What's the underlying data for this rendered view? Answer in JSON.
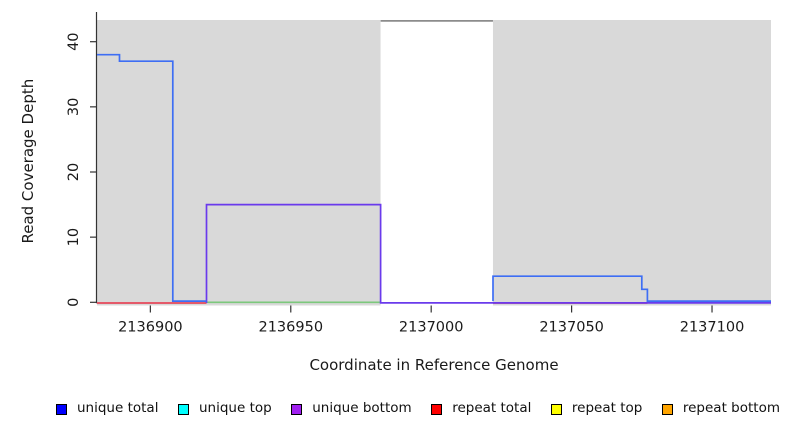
{
  "chart_data": {
    "type": "line",
    "subtype": "step-coverage-plot",
    "title": "",
    "xlabel": "Coordinate in Reference Genome",
    "ylabel": "Read Coverage Depth",
    "xlim": [
      2136881,
      2137121
    ],
    "ylim": [
      0,
      43.3
    ],
    "x_ticks": [
      2136900,
      2136950,
      2137000,
      2137050,
      2137100
    ],
    "y_ticks": [
      0,
      10,
      20,
      30,
      40
    ],
    "grid": "off",
    "plot_background": "#ffffff",
    "background_regions": [
      {
        "name": "shaded-region-left",
        "x1": 2136881,
        "x2": 2136982,
        "color": "#d9d9d9"
      },
      {
        "name": "unshaded-gap",
        "x1": 2136982,
        "x2": 2137022,
        "color": "#ffffff",
        "top_border": "#8c8c8c"
      },
      {
        "name": "shaded-region-right",
        "x1": 2137022,
        "x2": 2137121,
        "color": "#d9d9d9"
      }
    ],
    "series": [
      {
        "name": "repeat total",
        "color": "#e5475a",
        "segments": [
          [
            [
              2136881,
              0
            ],
            [
              2136920,
              0
            ]
          ],
          [
            [
              2137022,
              0
            ],
            [
              2137077,
              0
            ]
          ]
        ]
      },
      {
        "name": "baseline green",
        "color": "#7cc87c",
        "segments": [
          [
            [
              2136920,
              0
            ],
            [
              2136982,
              0
            ]
          ]
        ]
      },
      {
        "name": "unique bottom",
        "color": "#6a3aec",
        "segments": [
          [
            [
              2136920,
              0
            ],
            [
              2136920,
              15
            ],
            [
              2136982,
              15
            ],
            [
              2136982,
              0
            ],
            [
              2137121,
              0
            ]
          ]
        ]
      },
      {
        "name": "unique total",
        "color": "#3e6ef4",
        "segments": [
          [
            [
              2136881,
              38
            ],
            [
              2136889,
              38
            ],
            [
              2136889,
              37
            ],
            [
              2136908,
              37
            ],
            [
              2136908,
              0
            ],
            [
              2136920,
              0
            ]
          ],
          [
            [
              2137022,
              0
            ],
            [
              2137022,
              4
            ],
            [
              2137075,
              4
            ],
            [
              2137075,
              2
            ],
            [
              2137077,
              2
            ],
            [
              2137077,
              0
            ],
            [
              2137121,
              0
            ]
          ]
        ]
      }
    ],
    "legend_position": "bottom"
  },
  "legend": {
    "items": [
      {
        "label": "unique total",
        "color": "#0000ff"
      },
      {
        "label": "unique top",
        "color": "#00ffff"
      },
      {
        "label": "unique bottom",
        "color": "#a020f0"
      },
      {
        "label": "repeat total",
        "color": "#ff0000"
      },
      {
        "label": "repeat top",
        "color": "#ffff00"
      },
      {
        "label": "repeat bottom",
        "color": "#ffa500"
      }
    ]
  }
}
